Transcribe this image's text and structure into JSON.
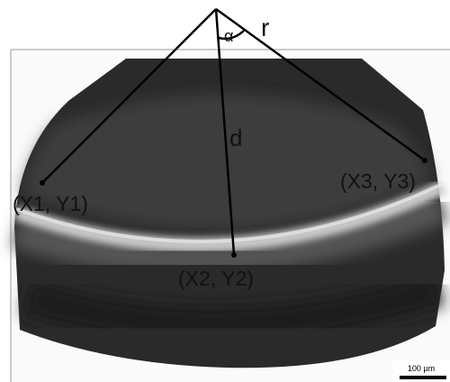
{
  "labels": {
    "radius": "r",
    "angle": "α",
    "distance": "d",
    "point1": "(X1, Y1)",
    "point2": "(X2, Y2)",
    "point3": "(X3, Y3)"
  },
  "scale_bar": "100 µm"
}
